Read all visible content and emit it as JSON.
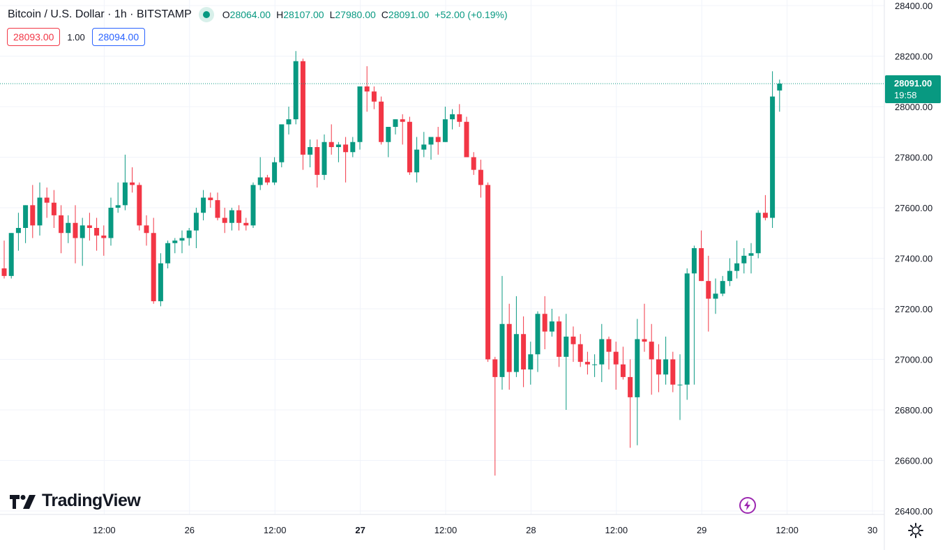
{
  "header": {
    "symbol": "Bitcoin / U.S. Dollar · 1h · BITSTAMP",
    "ohlc": {
      "o_label": "O",
      "o": "28064.00",
      "h_label": "H",
      "h": "28107.00",
      "l_label": "L",
      "l": "27980.00",
      "c_label": "C",
      "c": "28091.00",
      "change": "+52.00 (+0.19%)"
    },
    "status_icon": "market-open-dot"
  },
  "trade": {
    "sell_price": "28093.00",
    "quantity": "1.00",
    "buy_price": "28094.00"
  },
  "logo": {
    "text": "TradingView",
    "icon": "tradingview-logo-icon"
  },
  "price_badge": {
    "price": "28091.00",
    "countdown": "19:58"
  },
  "colors": {
    "up": "#089981",
    "down": "#f23645",
    "grid": "#f0f3fa",
    "text": "#131722",
    "accent_purple": "#9c27b0"
  },
  "icons": {
    "bolt": "lightning-bolt-icon",
    "settings": "gear-icon"
  },
  "chart_data": {
    "type": "candlestick",
    "symbol": "BTCUSD",
    "interval": "1h",
    "exchange": "BITSTAMP",
    "ylim": [
      26400,
      28400
    ],
    "y_ticks": [
      "28400.00",
      "28200.00",
      "28000.00",
      "27800.00",
      "27600.00",
      "27400.00",
      "27200.00",
      "27000.00",
      "26800.00",
      "26600.00",
      "26400.00"
    ],
    "x_ticks": [
      {
        "label": "12:00",
        "bold": false,
        "idx": 7
      },
      {
        "label": "26",
        "bold": false,
        "idx": 19
      },
      {
        "label": "12:00",
        "bold": false,
        "idx": 31
      },
      {
        "label": "27",
        "bold": true,
        "idx": 43
      },
      {
        "label": "12:00",
        "bold": false,
        "idx": 55
      },
      {
        "label": "28",
        "bold": false,
        "idx": 67
      },
      {
        "label": "12:00",
        "bold": false,
        "idx": 79
      },
      {
        "label": "29",
        "bold": false,
        "idx": 91
      },
      {
        "label": "12:00",
        "bold": false,
        "idx": 103
      },
      {
        "label": "30",
        "bold": false,
        "idx": 115
      }
    ],
    "last_price": 28091,
    "grid": true,
    "candles": [
      [
        27360,
        27470,
        27320,
        27330
      ],
      [
        27330,
        27500,
        27320,
        27500
      ],
      [
        27500,
        27580,
        27430,
        27520
      ],
      [
        27520,
        27610,
        27460,
        27610
      ],
      [
        27610,
        27690,
        27480,
        27530
      ],
      [
        27530,
        27700,
        27490,
        27640
      ],
      [
        27640,
        27680,
        27560,
        27620
      ],
      [
        27620,
        27670,
        27520,
        27570
      ],
      [
        27570,
        27610,
        27420,
        27500
      ],
      [
        27500,
        27570,
        27460,
        27540
      ],
      [
        27540,
        27610,
        27380,
        27480
      ],
      [
        27480,
        27560,
        27370,
        27530
      ],
      [
        27530,
        27580,
        27470,
        27520
      ],
      [
        27520,
        27560,
        27430,
        27490
      ],
      [
        27490,
        27530,
        27410,
        27480
      ],
      [
        27480,
        27640,
        27450,
        27600
      ],
      [
        27600,
        27700,
        27580,
        27610
      ],
      [
        27610,
        27810,
        27590,
        27700
      ],
      [
        27700,
        27760,
        27660,
        27690
      ],
      [
        27690,
        27700,
        27510,
        27530
      ],
      [
        27530,
        27570,
        27450,
        27500
      ],
      [
        27500,
        27560,
        27220,
        27230
      ],
      [
        27230,
        27420,
        27210,
        27380
      ],
      [
        27380,
        27470,
        27360,
        27460
      ],
      [
        27460,
        27480,
        27420,
        27470
      ],
      [
        27470,
        27510,
        27420,
        27480
      ],
      [
        27480,
        27520,
        27450,
        27510
      ],
      [
        27510,
        27600,
        27440,
        27580
      ],
      [
        27580,
        27670,
        27550,
        27640
      ],
      [
        27640,
        27660,
        27600,
        27630
      ],
      [
        27630,
        27660,
        27550,
        27560
      ],
      [
        27560,
        27600,
        27500,
        27540
      ],
      [
        27540,
        27600,
        27510,
        27590
      ],
      [
        27590,
        27610,
        27510,
        27540
      ],
      [
        27540,
        27560,
        27510,
        27530
      ],
      [
        27530,
        27700,
        27520,
        27690
      ],
      [
        27690,
        27800,
        27670,
        27720
      ],
      [
        27720,
        27730,
        27690,
        27700
      ],
      [
        27700,
        27800,
        27690,
        27780
      ],
      [
        27780,
        27920,
        27760,
        27930
      ],
      [
        27930,
        28000,
        27890,
        27950
      ],
      [
        27950,
        28220,
        27930,
        28180
      ],
      [
        28180,
        28190,
        27750,
        27810
      ],
      [
        27810,
        27870,
        27760,
        27840
      ],
      [
        27840,
        27870,
        27680,
        27730
      ],
      [
        27730,
        27890,
        27710,
        27860
      ],
      [
        27860,
        27930,
        27810,
        27840
      ],
      [
        27840,
        27860,
        27780,
        27850
      ],
      [
        27850,
        27880,
        27700,
        27820
      ],
      [
        27820,
        27880,
        27800,
        27860
      ],
      [
        27860,
        28060,
        27830,
        28080
      ],
      [
        28080,
        28160,
        27980,
        28060
      ],
      [
        28060,
        28080,
        27990,
        28020
      ],
      [
        28020,
        28040,
        27850,
        27860
      ],
      [
        27860,
        27920,
        27800,
        27920
      ],
      [
        27920,
        27950,
        27890,
        27950
      ],
      [
        27950,
        27970,
        27850,
        27940
      ],
      [
        27940,
        27960,
        27730,
        27740
      ],
      [
        27740,
        27880,
        27700,
        27830
      ],
      [
        27830,
        27900,
        27800,
        27850
      ],
      [
        27850,
        27880,
        27790,
        27880
      ],
      [
        27880,
        27920,
        27810,
        27860
      ],
      [
        27860,
        28000,
        27860,
        27950
      ],
      [
        27950,
        27990,
        27910,
        27970
      ],
      [
        27970,
        28010,
        27920,
        27940
      ],
      [
        27940,
        27960,
        27820,
        27800
      ],
      [
        27800,
        27820,
        27730,
        27750
      ],
      [
        27750,
        27790,
        27640,
        27690
      ],
      [
        27690,
        27700,
        26990,
        27000
      ],
      [
        27000,
        27010,
        26540,
        26930
      ],
      [
        26930,
        27330,
        26880,
        27140
      ],
      [
        27140,
        27220,
        26880,
        26950
      ],
      [
        26950,
        27250,
        26930,
        27100
      ],
      [
        27100,
        27170,
        26890,
        26960
      ],
      [
        26960,
        27070,
        26900,
        27020
      ],
      [
        27020,
        27190,
        26950,
        27180
      ],
      [
        27180,
        27250,
        27040,
        27110
      ],
      [
        27110,
        27200,
        27090,
        27150
      ],
      [
        27150,
        27170,
        26970,
        27010
      ],
      [
        27010,
        27180,
        26800,
        27090
      ],
      [
        27090,
        27130,
        26990,
        27060
      ],
      [
        27060,
        27100,
        26970,
        26990
      ],
      [
        26990,
        27030,
        26940,
        26980
      ],
      [
        26980,
        27020,
        26930,
        26980
      ],
      [
        26980,
        27140,
        26910,
        27080
      ],
      [
        27080,
        27090,
        26960,
        27030
      ],
      [
        27030,
        27070,
        26880,
        26980
      ],
      [
        26980,
        27050,
        26920,
        26930
      ],
      [
        26930,
        27000,
        26650,
        26850
      ],
      [
        26850,
        27160,
        26660,
        27080
      ],
      [
        27080,
        27220,
        27030,
        27070
      ],
      [
        27070,
        27140,
        26860,
        27000
      ],
      [
        27000,
        27060,
        26870,
        26940
      ],
      [
        26940,
        27090,
        26900,
        27000
      ],
      [
        27000,
        27030,
        26870,
        26900
      ],
      [
        26900,
        27020,
        26760,
        26900
      ],
      [
        26900,
        27360,
        26840,
        27340
      ],
      [
        27340,
        27450,
        26900,
        27440
      ],
      [
        27440,
        27510,
        27310,
        27310
      ],
      [
        27310,
        27410,
        27110,
        27240
      ],
      [
        27240,
        27320,
        27180,
        27260
      ],
      [
        27260,
        27330,
        27250,
        27310
      ],
      [
        27310,
        27400,
        27290,
        27350
      ],
      [
        27350,
        27470,
        27320,
        27380
      ],
      [
        27380,
        27440,
        27340,
        27410
      ],
      [
        27410,
        27460,
        27340,
        27420
      ],
      [
        27420,
        27590,
        27400,
        27580
      ],
      [
        27580,
        27650,
        27550,
        27560
      ],
      [
        27560,
        28140,
        27520,
        28040
      ],
      [
        28064,
        28107,
        27980,
        28091
      ]
    ]
  }
}
